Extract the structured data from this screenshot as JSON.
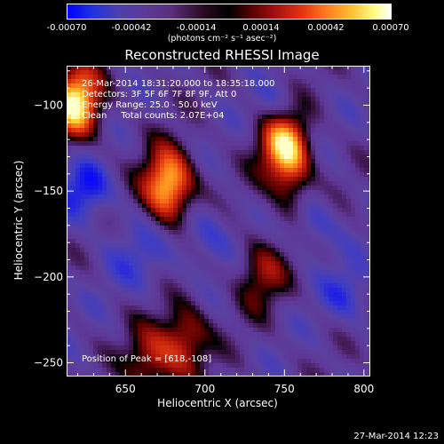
{
  "colorbar": {
    "ticks": [
      "-0.00070",
      "-0.00042",
      "-0.00014",
      "0.00014",
      "0.00042",
      "0.00070"
    ],
    "units": "(photons cm⁻² s⁻¹ asec⁻²)"
  },
  "title": "Reconstructed RHESSI Image",
  "info": {
    "line1": "26-Mar-2014 18:31:20.000 to 18:35:18.000",
    "line2": "Detectors: 3F 5F 6F 7F 8F 9F, Att 0",
    "line3": "Energy Range: 25.0 - 50.0 keV",
    "line4": "Clean     Total counts: 2.07E+04",
    "peak": "Position of Peak = [618,-108]"
  },
  "timestamp": "27-Mar-2014 12:23",
  "chart_data": {
    "type": "heatmap",
    "title": "Reconstructed RHESSI Image",
    "xlabel": "Heliocentric X (arcsec)",
    "ylabel": "Heliocentric Y (arcsec)",
    "xlim": [
      613,
      804
    ],
    "ylim": [
      -258,
      -77
    ],
    "xticks": [
      650,
      700,
      750,
      800
    ],
    "yticks": [
      -100,
      -150,
      -200,
      -250
    ],
    "xtick_labels": [
      "650",
      "700",
      "750",
      "800"
    ],
    "ytick_labels": [
      "−100",
      "−150",
      "−200",
      "−250"
    ],
    "colorbar_range": [
      -0.0007,
      0.0007
    ],
    "peak_position": [
      618,
      -108
    ],
    "sources": [
      {
        "x": 619,
        "y": -98,
        "value": 0.0007
      },
      {
        "x": 677,
        "y": -147,
        "value": 0.0007
      },
      {
        "x": 749,
        "y": -124,
        "value": 0.00055
      },
      {
        "x": 735,
        "y": -198,
        "value": 0.0003
      },
      {
        "x": 687,
        "y": -237,
        "value": 0.0004
      },
      {
        "x": 665,
        "y": -250,
        "value": 0.00035
      }
    ]
  }
}
